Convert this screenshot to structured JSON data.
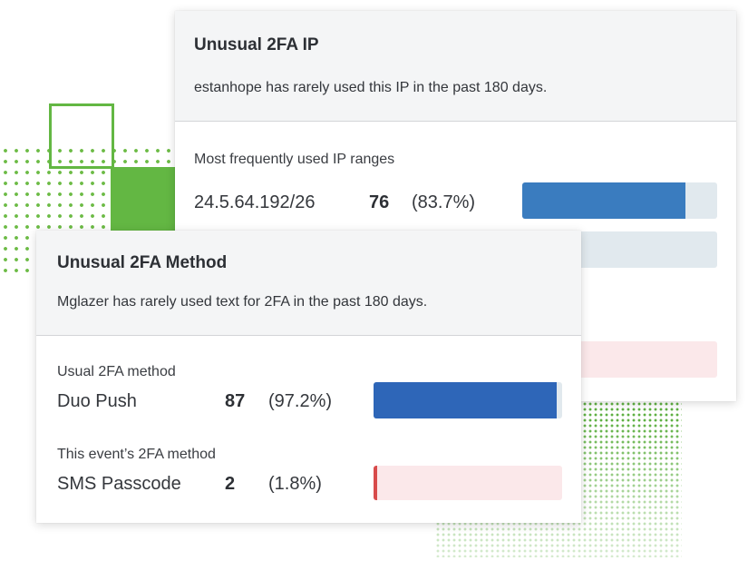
{
  "colors": {
    "accent_green": "#63b743",
    "bar_blue": "#3a7cbf",
    "bar_blue_dark": "#2e66b8",
    "bar_track_blue": "#e1e9ee",
    "bar_track_red": "#fbe8ea",
    "bar_red": "#d84b4b"
  },
  "ip_card": {
    "title": "Unusual 2FA IP",
    "description": "estanhope has rarely used this IP in the past 180 days.",
    "section_label": "Most frequently used IP ranges",
    "rows": [
      {
        "name": "24.5.64.192/26",
        "count": "76",
        "percent": "(83.7%)",
        "fraction": 0.837
      }
    ]
  },
  "method_card": {
    "title": "Unusual 2FA Method",
    "description": "Mglazer has rarely used text for 2FA in the past 180 days.",
    "rows": [
      {
        "label": "Usual 2FA method",
        "name": "Duo Push",
        "count": "87",
        "percent": "(97.2%)",
        "fraction": 0.972
      },
      {
        "label": "This event’s 2FA method",
        "name": "SMS Passcode",
        "count": "2",
        "percent": "(1.8%)",
        "fraction": 0.018
      }
    ]
  }
}
